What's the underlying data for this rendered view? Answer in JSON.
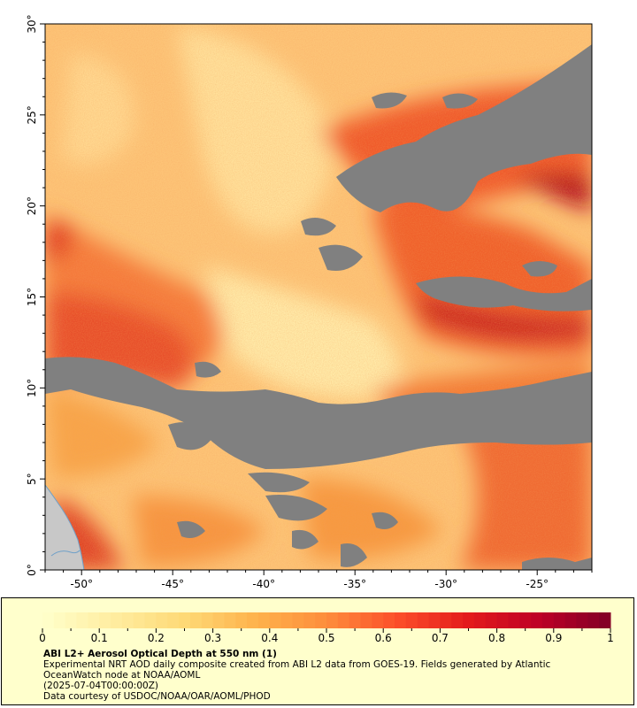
{
  "map": {
    "lon_range": [
      -52,
      -22
    ],
    "lat_range": [
      0,
      30
    ],
    "x_ticks": [
      {
        "lon": -50,
        "label": "-50°"
      },
      {
        "lon": -45,
        "label": "-45°"
      },
      {
        "lon": -40,
        "label": "-40°"
      },
      {
        "lon": -35,
        "label": "-35°"
      },
      {
        "lon": -30,
        "label": "-30°"
      },
      {
        "lon": -25,
        "label": "-25°"
      }
    ],
    "y_ticks": [
      {
        "lat": 0,
        "label": "0°"
      },
      {
        "lat": 5,
        "label": "5°"
      },
      {
        "lat": 10,
        "label": "10°"
      },
      {
        "lat": 15,
        "label": "15°"
      },
      {
        "lat": 20,
        "label": "20°"
      },
      {
        "lat": 25,
        "label": "25°"
      },
      {
        "lat": 30,
        "label": "30°"
      }
    ],
    "colors": {
      "no_data_gray": "#808080",
      "land": "#c8c8c8",
      "coastline": "#6fa0c8"
    }
  },
  "colorbar": {
    "range": [
      0,
      1
    ],
    "labels": [
      "0",
      "0.1",
      "0.2",
      "0.3",
      "0.4",
      "0.5",
      "0.6",
      "0.7",
      "0.8",
      "0.9",
      "1"
    ],
    "stops": [
      "#ffffcc",
      "#ffeda0",
      "#fed976",
      "#feb24c",
      "#fd8d3c",
      "#fc4e2a",
      "#e31a1c",
      "#bd0026",
      "#800026"
    ]
  },
  "caption": {
    "title": "ABI L2+ Aerosol Optical Depth at 550 nm (1)",
    "line1": "Experimental NRT AOD daily composite created from ABI L2 data from GOES-19. Fields generated by Atlantic",
    "line2": "OceanWatch node at NOAA/AOML",
    "line3": "(2025-07-04T00:00:00Z)",
    "line4": "Data courtesy of USDOC/NOAA/OAR/AOML/PHOD"
  }
}
